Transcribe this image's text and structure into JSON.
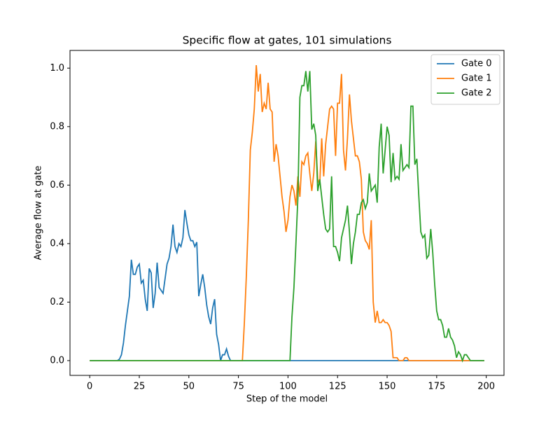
{
  "chart_data": {
    "type": "line",
    "title": "Specific flow at gates, 101 simulations",
    "x_label": "Step of the model",
    "y_label": "Average flow at gate",
    "xlim": [
      -9.95,
      208.95
    ],
    "ylim": [
      -0.0505,
      1.0605
    ],
    "xticks": [
      0,
      25,
      50,
      75,
      100,
      125,
      150,
      175,
      200
    ],
    "yticks": [
      {
        "value": 0,
        "label": "0.0"
      },
      0.2,
      0.4,
      0.6,
      0.8,
      {
        "value": 1,
        "label": "1.0"
      }
    ],
    "legend": "upper right",
    "grid": false,
    "series": [
      {
        "name": "Gate 0",
        "color": "#1f77b4",
        "x": [
          0,
          14,
          15,
          16,
          17,
          18,
          19,
          20,
          21,
          22,
          23,
          24,
          25,
          26,
          27,
          28,
          29,
          30,
          31,
          32,
          33,
          34,
          35,
          36,
          37,
          38,
          39,
          40,
          41,
          42,
          43,
          44,
          45,
          46,
          47,
          48,
          49,
          50,
          51,
          52,
          53,
          54,
          55,
          56,
          57,
          58,
          59,
          60,
          61,
          62,
          63,
          64,
          65,
          66,
          67,
          68,
          69,
          70,
          71,
          199
        ],
        "values": [
          0,
          0,
          0.005,
          0.02,
          0.06,
          0.12,
          0.17,
          0.22,
          0.345,
          0.295,
          0.295,
          0.32,
          0.33,
          0.265,
          0.275,
          0.21,
          0.17,
          0.315,
          0.3,
          0.18,
          0.23,
          0.335,
          0.25,
          0.24,
          0.23,
          0.28,
          0.33,
          0.35,
          0.39,
          0.465,
          0.39,
          0.37,
          0.4,
          0.39,
          0.42,
          0.515,
          0.47,
          0.43,
          0.41,
          0.41,
          0.39,
          0.405,
          0.22,
          0.26,
          0.295,
          0.25,
          0.19,
          0.15,
          0.125,
          0.18,
          0.21,
          0.09,
          0.055,
          0,
          0.02,
          0.02,
          0.04,
          0.015,
          0,
          0
        ]
      },
      {
        "name": "Gate 1",
        "color": "#ff7f0e",
        "x": [
          0,
          77,
          78,
          79,
          80,
          81,
          82,
          83,
          84,
          85,
          86,
          87,
          88,
          89,
          90,
          91,
          92,
          93,
          94,
          95,
          96,
          97,
          98,
          99,
          100,
          101,
          102,
          103,
          104,
          105,
          106,
          107,
          108,
          109,
          110,
          111,
          112,
          113,
          114,
          115,
          116,
          117,
          118,
          119,
          120,
          121,
          122,
          123,
          124,
          125,
          126,
          127,
          128,
          129,
          130,
          131,
          132,
          133,
          134,
          135,
          136,
          137,
          138,
          139,
          140,
          141,
          142,
          143,
          144,
          145,
          146,
          147,
          148,
          149,
          150,
          151,
          152,
          153,
          154,
          155,
          156,
          157,
          158,
          159,
          160,
          161,
          199
        ],
        "values": [
          0,
          0,
          0.13,
          0.29,
          0.48,
          0.72,
          0.78,
          0.86,
          1.01,
          0.92,
          0.98,
          0.85,
          0.88,
          0.86,
          0.95,
          0.86,
          0.85,
          0.68,
          0.74,
          0.7,
          0.63,
          0.56,
          0.51,
          0.44,
          0.48,
          0.56,
          0.6,
          0.58,
          0.53,
          0.63,
          0.56,
          0.68,
          0.67,
          0.7,
          0.71,
          0.64,
          0.58,
          0.64,
          0.75,
          0.62,
          0.6,
          0.76,
          0.63,
          0.74,
          0.8,
          0.86,
          0.87,
          0.86,
          0.7,
          0.88,
          0.88,
          0.98,
          0.72,
          0.65,
          0.76,
          0.91,
          0.82,
          0.76,
          0.7,
          0.7,
          0.68,
          0.62,
          0.44,
          0.41,
          0.4,
          0.38,
          0.48,
          0.2,
          0.13,
          0.17,
          0.13,
          0.13,
          0.14,
          0.13,
          0.13,
          0.12,
          0.1,
          0.01,
          0.01,
          0.01,
          0,
          0,
          0,
          0.01,
          0.01,
          0,
          0
        ]
      },
      {
        "name": "Gate 2",
        "color": "#2ca02c",
        "x": [
          0,
          101,
          102,
          103,
          104,
          105,
          106,
          107,
          108,
          109,
          110,
          111,
          112,
          113,
          114,
          115,
          116,
          117,
          118,
          119,
          120,
          121,
          122,
          123,
          124,
          125,
          126,
          127,
          128,
          129,
          130,
          131,
          132,
          133,
          134,
          135,
          136,
          137,
          138,
          139,
          140,
          141,
          142,
          143,
          144,
          145,
          146,
          147,
          148,
          149,
          150,
          151,
          152,
          153,
          154,
          155,
          156,
          157,
          158,
          159,
          160,
          161,
          162,
          163,
          164,
          165,
          166,
          167,
          168,
          169,
          170,
          171,
          172,
          173,
          174,
          175,
          176,
          177,
          178,
          179,
          180,
          181,
          182,
          183,
          184,
          185,
          186,
          187,
          188,
          189,
          190,
          191,
          192,
          199
        ],
        "values": [
          0,
          0,
          0.15,
          0.25,
          0.4,
          0.56,
          0.9,
          0.94,
          0.94,
          0.99,
          0.92,
          0.99,
          0.79,
          0.81,
          0.77,
          0.58,
          0.62,
          0.56,
          0.5,
          0.45,
          0.44,
          0.45,
          0.63,
          0.39,
          0.39,
          0.37,
          0.34,
          0.42,
          0.45,
          0.48,
          0.53,
          0.44,
          0.33,
          0.4,
          0.44,
          0.5,
          0.5,
          0.54,
          0.55,
          0.52,
          0.54,
          0.64,
          0.58,
          0.59,
          0.6,
          0.54,
          0.73,
          0.81,
          0.64,
          0.72,
          0.8,
          0.77,
          0.61,
          0.71,
          0.62,
          0.63,
          0.62,
          0.74,
          0.65,
          0.66,
          0.67,
          0.66,
          0.87,
          0.87,
          0.67,
          0.69,
          0.56,
          0.44,
          0.42,
          0.43,
          0.35,
          0.36,
          0.45,
          0.37,
          0.26,
          0.17,
          0.14,
          0.14,
          0.12,
          0.08,
          0.08,
          0.11,
          0.08,
          0.07,
          0.05,
          0.01,
          0.03,
          0.02,
          0,
          0.02,
          0.02,
          0.01,
          0,
          0
        ]
      }
    ]
  }
}
